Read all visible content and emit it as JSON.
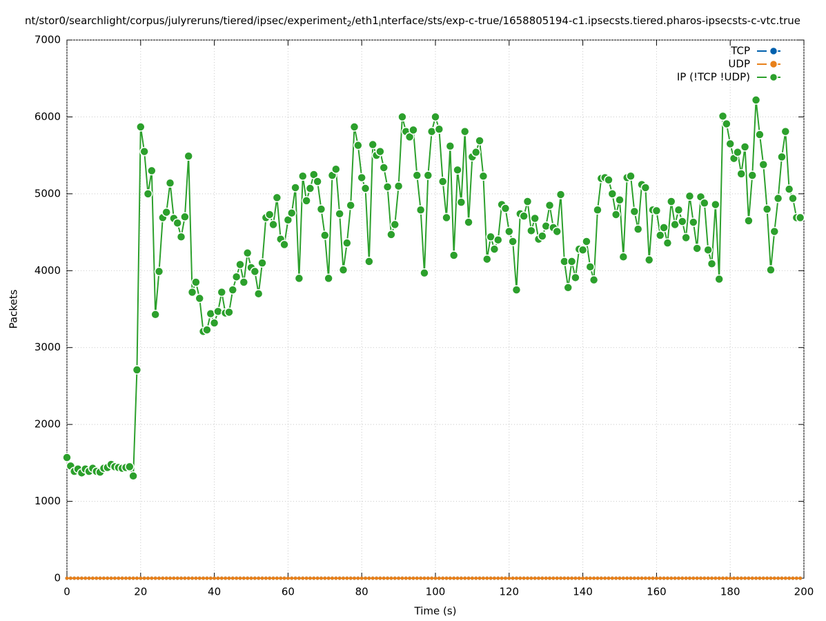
{
  "chart_data": {
    "type": "line",
    "title_parts": [
      "nt/stor0/searchlight/corpus/julyreruns/tiered/ipsec/experiment",
      "2",
      "/eth1",
      "i",
      "nterface/sts/exp-c-true/1658805194-c1.ipsecsts.tiered.pharos-ipsecsts-c-vtc.true"
    ],
    "x_label": "Time (s)",
    "y_label": "Packets",
    "xlim": [
      0,
      200
    ],
    "xticks": [
      0,
      20,
      40,
      60,
      80,
      100,
      120,
      140,
      160,
      180,
      200
    ],
    "ylim": [
      0,
      7000
    ],
    "yticks": [
      0,
      1000,
      2000,
      3000,
      4000,
      5000,
      6000,
      7000
    ],
    "grid": true,
    "legend": "top-right",
    "x": [
      0,
      1,
      2,
      3,
      4,
      5,
      6,
      7,
      8,
      9,
      10,
      11,
      12,
      13,
      14,
      15,
      16,
      17,
      18,
      19,
      20,
      21,
      22,
      23,
      24,
      25,
      26,
      27,
      28,
      29,
      30,
      31,
      32,
      33,
      34,
      35,
      36,
      37,
      38,
      39,
      40,
      41,
      42,
      43,
      44,
      45,
      46,
      47,
      48,
      49,
      50,
      51,
      52,
      53,
      54,
      55,
      56,
      57,
      58,
      59,
      60,
      61,
      62,
      63,
      64,
      65,
      66,
      67,
      68,
      69,
      70,
      71,
      72,
      73,
      74,
      75,
      76,
      77,
      78,
      79,
      80,
      81,
      82,
      83,
      84,
      85,
      86,
      87,
      88,
      89,
      90,
      91,
      92,
      93,
      94,
      95,
      96,
      97,
      98,
      99,
      100,
      101,
      102,
      103,
      104,
      105,
      106,
      107,
      108,
      109,
      110,
      111,
      112,
      113,
      114,
      115,
      116,
      117,
      118,
      119,
      120,
      121,
      122,
      123,
      124,
      125,
      126,
      127,
      128,
      129,
      130,
      131,
      132,
      133,
      134,
      135,
      136,
      137,
      138,
      139,
      140,
      141,
      142,
      143,
      144,
      145,
      146,
      147,
      148,
      149,
      150,
      151,
      152,
      153,
      154,
      155,
      156,
      157,
      158,
      159,
      160,
      161,
      162,
      163,
      164,
      165,
      166,
      167,
      168,
      169,
      170,
      171,
      172,
      173,
      174,
      175,
      176,
      177,
      178,
      179,
      180,
      181,
      182,
      183,
      184,
      185,
      186,
      187,
      188,
      189,
      190,
      191,
      192,
      193,
      194,
      195,
      196,
      197,
      198,
      199
    ],
    "series": [
      {
        "name": "TCP",
        "color": "#0060ad",
        "values": [
          0,
          0,
          0,
          0,
          0,
          0,
          0,
          0,
          0,
          0,
          0,
          0,
          0,
          0,
          0,
          0,
          0,
          0,
          0,
          0,
          0,
          0,
          0,
          0,
          0,
          0,
          0,
          0,
          0,
          0,
          0,
          0,
          0,
          0,
          0,
          0,
          0,
          0,
          0,
          0,
          0,
          0,
          0,
          0,
          0,
          0,
          0,
          0,
          0,
          0,
          0,
          0,
          0,
          0,
          0,
          0,
          0,
          0,
          0,
          0,
          0,
          0,
          0,
          0,
          0,
          0,
          0,
          0,
          0,
          0,
          0,
          0,
          0,
          0,
          0,
          0,
          0,
          0,
          0,
          0,
          0,
          0,
          0,
          0,
          0,
          0,
          0,
          0,
          0,
          0,
          0,
          0,
          0,
          0,
          0,
          0,
          0,
          0,
          0,
          0,
          0,
          0,
          0,
          0,
          0,
          0,
          0,
          0,
          0,
          0,
          0,
          0,
          0,
          0,
          0,
          0,
          0,
          0,
          0,
          0,
          0,
          0,
          0,
          0,
          0,
          0,
          0,
          0,
          0,
          0,
          0,
          0,
          0,
          0,
          0,
          0,
          0,
          0,
          0,
          0,
          0,
          0,
          0,
          0,
          0,
          0,
          0,
          0,
          0,
          0,
          0,
          0,
          0,
          0,
          0,
          0,
          0,
          0,
          0,
          0,
          0,
          0,
          0,
          0,
          0,
          0,
          0,
          0,
          0,
          0,
          0,
          0,
          0,
          0,
          0,
          0,
          0,
          0,
          0,
          0,
          0,
          0,
          0,
          0,
          0,
          0,
          0,
          0,
          0,
          0,
          0,
          0,
          0,
          0,
          0,
          0,
          0,
          0,
          0,
          0
        ]
      },
      {
        "name": "UDP",
        "color": "#e8801a",
        "values": [
          0,
          0,
          0,
          0,
          0,
          0,
          0,
          0,
          0,
          0,
          0,
          0,
          0,
          0,
          0,
          0,
          0,
          0,
          0,
          0,
          0,
          0,
          0,
          0,
          0,
          0,
          0,
          0,
          0,
          0,
          0,
          0,
          0,
          0,
          0,
          0,
          0,
          0,
          0,
          0,
          0,
          0,
          0,
          0,
          0,
          0,
          0,
          0,
          0,
          0,
          0,
          0,
          0,
          0,
          0,
          0,
          0,
          0,
          0,
          0,
          0,
          0,
          0,
          0,
          0,
          0,
          0,
          0,
          0,
          0,
          0,
          0,
          0,
          0,
          0,
          0,
          0,
          0,
          0,
          0,
          0,
          0,
          0,
          0,
          0,
          0,
          0,
          0,
          0,
          0,
          0,
          0,
          0,
          0,
          0,
          0,
          0,
          0,
          0,
          0,
          0,
          0,
          0,
          0,
          0,
          0,
          0,
          0,
          0,
          0,
          0,
          0,
          0,
          0,
          0,
          0,
          0,
          0,
          0,
          0,
          0,
          0,
          0,
          0,
          0,
          0,
          0,
          0,
          0,
          0,
          0,
          0,
          0,
          0,
          0,
          0,
          0,
          0,
          0,
          0,
          0,
          0,
          0,
          0,
          0,
          0,
          0,
          0,
          0,
          0,
          0,
          0,
          0,
          0,
          0,
          0,
          0,
          0,
          0,
          0,
          0,
          0,
          0,
          0,
          0,
          0,
          0,
          0,
          0,
          0,
          0,
          0,
          0,
          0,
          0,
          0,
          0,
          0,
          0,
          0,
          0,
          0,
          0,
          0,
          0,
          0,
          0,
          0,
          0,
          0,
          0,
          0,
          0,
          0,
          0,
          0,
          0,
          0,
          0,
          0
        ]
      },
      {
        "name": "IP (!TCP  !UDP)",
        "color": "#2ca02c",
        "values": [
          1570,
          1460,
          1390,
          1420,
          1370,
          1420,
          1390,
          1430,
          1390,
          1380,
          1430,
          1440,
          1480,
          1450,
          1440,
          1430,
          1440,
          1450,
          1330,
          2710,
          5870,
          5550,
          5000,
          5300,
          3430,
          3990,
          4690,
          4760,
          5140,
          4680,
          4620,
          4440,
          4700,
          5490,
          3720,
          3850,
          3640,
          3210,
          3230,
          3440,
          3320,
          3470,
          3720,
          3450,
          3460,
          3750,
          3920,
          4080,
          3850,
          4230,
          4040,
          3990,
          3700,
          4100,
          4690,
          4730,
          4600,
          4950,
          4410,
          4340,
          4660,
          4750,
          5080,
          3900,
          5230,
          4910,
          5070,
          5250,
          5160,
          4800,
          4460,
          3900,
          5240,
          5320,
          4740,
          4010,
          4360,
          4850,
          5870,
          5630,
          5210,
          5070,
          4120,
          5640,
          5500,
          5550,
          5340,
          5090,
          4470,
          4600,
          5100,
          6000,
          5810,
          5740,
          5830,
          5240,
          4790,
          3970,
          5240,
          5810,
          6000,
          5840,
          5160,
          4690,
          5620,
          4200,
          5310,
          4890,
          5810,
          4630,
          5480,
          5540,
          5690,
          5230,
          4150,
          4440,
          4280,
          4400,
          4860,
          4810,
          4510,
          4380,
          3750,
          4740,
          4710,
          4900,
          4520,
          4680,
          4410,
          4450,
          4580,
          4850,
          4560,
          4510,
          4990,
          4120,
          3780,
          4120,
          3910,
          4280,
          4270,
          4380,
          4050,
          3880,
          4790,
          5200,
          5210,
          5180,
          5000,
          4730,
          4920,
          4180,
          5210,
          5230,
          4770,
          4540,
          5120,
          5080,
          4140,
          4790,
          4780,
          4460,
          4560,
          4360,
          4900,
          4600,
          4790,
          4640,
          4430,
          4970,
          4630,
          4290,
          4960,
          4880,
          4270,
          4090,
          4860,
          3890,
          6010,
          5910,
          5650,
          5460,
          5540,
          5260,
          5610,
          4650,
          5240,
          6220,
          5770,
          5380,
          4800,
          4010,
          4510,
          4940,
          5480,
          5810,
          5060,
          4940,
          4690,
          4690
        ]
      }
    ]
  }
}
